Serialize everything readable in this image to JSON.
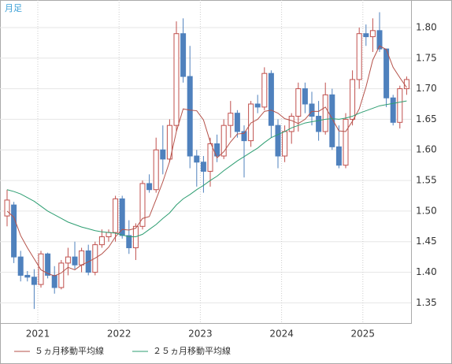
{
  "chart_data": {
    "type": "candlestick",
    "title": "月足",
    "x": [
      "2020-08",
      "2020-09",
      "2020-10",
      "2020-11",
      "2020-12",
      "2021-01",
      "2021-02",
      "2021-03",
      "2021-04",
      "2021-05",
      "2021-06",
      "2021-07",
      "2021-08",
      "2021-09",
      "2021-10",
      "2021-11",
      "2021-12",
      "2022-01",
      "2022-02",
      "2022-03",
      "2022-04",
      "2022-05",
      "2022-06",
      "2022-07",
      "2022-08",
      "2022-09",
      "2022-10",
      "2022-11",
      "2022-12",
      "2023-01",
      "2023-02",
      "2023-03",
      "2023-04",
      "2023-05",
      "2023-06",
      "2023-07",
      "2023-08",
      "2023-09",
      "2023-10",
      "2023-11",
      "2023-12",
      "2024-01",
      "2024-02",
      "2024-03",
      "2024-04",
      "2024-05",
      "2024-06",
      "2024-07",
      "2024-08",
      "2024-09",
      "2024-10",
      "2024-11",
      "2024-12",
      "2025-01",
      "2025-02",
      "2025-03",
      "2025-04",
      "2025-05",
      "2025-06",
      "2025-07"
    ],
    "open": [
      1.492,
      1.51,
      1.425,
      1.395,
      1.392,
      1.38,
      1.43,
      1.395,
      1.375,
      1.415,
      1.425,
      1.412,
      1.435,
      1.4,
      1.445,
      1.458,
      1.465,
      1.52,
      1.46,
      1.44,
      1.475,
      1.545,
      1.535,
      1.6,
      1.585,
      1.64,
      1.79,
      1.72,
      1.59,
      1.58,
      1.565,
      1.61,
      1.59,
      1.64,
      1.66,
      1.63,
      1.615,
      1.675,
      1.67,
      1.725,
      1.64,
      1.59,
      1.63,
      1.655,
      1.7,
      1.675,
      1.655,
      1.63,
      1.69,
      1.605,
      1.575,
      1.65,
      1.715,
      1.79,
      1.785,
      1.795,
      1.765,
      1.685,
      1.645,
      1.7
    ],
    "high": [
      1.535,
      1.515,
      1.435,
      1.402,
      1.405,
      1.435,
      1.432,
      1.41,
      1.42,
      1.44,
      1.45,
      1.44,
      1.445,
      1.45,
      1.47,
      1.47,
      1.525,
      1.525,
      1.485,
      1.48,
      1.55,
      1.56,
      1.62,
      1.64,
      1.65,
      1.81,
      1.815,
      1.77,
      1.6,
      1.59,
      1.62,
      1.625,
      1.65,
      1.68,
      1.665,
      1.64,
      1.68,
      1.69,
      1.735,
      1.73,
      1.65,
      1.64,
      1.66,
      1.71,
      1.71,
      1.695,
      1.68,
      1.71,
      1.7,
      1.64,
      1.66,
      1.73,
      1.8,
      1.805,
      1.815,
      1.825,
      1.765,
      1.69,
      1.705,
      1.72
    ],
    "low": [
      1.475,
      1.415,
      1.385,
      1.385,
      1.34,
      1.375,
      1.39,
      1.365,
      1.372,
      1.395,
      1.405,
      1.4,
      1.395,
      1.395,
      1.44,
      1.45,
      1.45,
      1.455,
      1.43,
      1.42,
      1.47,
      1.53,
      1.53,
      1.56,
      1.58,
      1.63,
      1.71,
      1.57,
      1.54,
      1.53,
      1.54,
      1.58,
      1.585,
      1.62,
      1.62,
      1.555,
      1.605,
      1.66,
      1.665,
      1.62,
      1.57,
      1.58,
      1.61,
      1.63,
      1.66,
      1.64,
      1.615,
      1.625,
      1.6,
      1.57,
      1.57,
      1.64,
      1.7,
      1.77,
      1.76,
      1.76,
      1.67,
      1.64,
      1.635,
      1.69
    ],
    "close": [
      1.518,
      1.425,
      1.395,
      1.392,
      1.38,
      1.43,
      1.395,
      1.375,
      1.415,
      1.425,
      1.412,
      1.435,
      1.4,
      1.445,
      1.458,
      1.465,
      1.52,
      1.46,
      1.44,
      1.475,
      1.545,
      1.535,
      1.6,
      1.585,
      1.64,
      1.79,
      1.72,
      1.59,
      1.58,
      1.565,
      1.61,
      1.59,
      1.64,
      1.66,
      1.63,
      1.615,
      1.675,
      1.67,
      1.725,
      1.64,
      1.59,
      1.63,
      1.655,
      1.7,
      1.675,
      1.655,
      1.63,
      1.69,
      1.605,
      1.575,
      1.65,
      1.715,
      1.79,
      1.785,
      1.795,
      1.765,
      1.685,
      1.645,
      1.7,
      1.715
    ],
    "up_color": "#c0504d",
    "down_color": "#4f81bd",
    "series": [
      {
        "name": "５ヵ月移動平均線",
        "color": "#b5524a",
        "values": [
          1.5,
          1.49,
          1.46,
          1.44,
          1.422,
          1.404,
          1.398,
          1.394,
          1.399,
          1.408,
          1.404,
          1.412,
          1.417,
          1.423,
          1.43,
          1.441,
          1.458,
          1.47,
          1.469,
          1.472,
          1.488,
          1.491,
          1.519,
          1.548,
          1.581,
          1.63,
          1.667,
          1.665,
          1.664,
          1.649,
          1.613,
          1.587,
          1.597,
          1.613,
          1.626,
          1.627,
          1.644,
          1.65,
          1.663,
          1.665,
          1.66,
          1.651,
          1.648,
          1.643,
          1.65,
          1.663,
          1.663,
          1.67,
          1.651,
          1.631,
          1.63,
          1.647,
          1.667,
          1.703,
          1.747,
          1.77,
          1.764,
          1.735,
          1.718,
          1.702
        ]
      },
      {
        "name": "２５ヵ月移動平均線",
        "color": "#2e9e72",
        "values": [
          1.535,
          1.532,
          1.528,
          1.522,
          1.516,
          1.508,
          1.5,
          1.494,
          1.488,
          1.482,
          1.478,
          1.474,
          1.471,
          1.468,
          1.466,
          1.465,
          1.464,
          1.461,
          1.458,
          1.458,
          1.462,
          1.47,
          1.478,
          1.488,
          1.497,
          1.51,
          1.52,
          1.527,
          1.535,
          1.542,
          1.55,
          1.557,
          1.566,
          1.574,
          1.582,
          1.589,
          1.596,
          1.603,
          1.612,
          1.62,
          1.625,
          1.63,
          1.636,
          1.64,
          1.644,
          1.646,
          1.648,
          1.65,
          1.651,
          1.65,
          1.652,
          1.655,
          1.66,
          1.664,
          1.668,
          1.672,
          1.674,
          1.676,
          1.678,
          1.68
        ]
      }
    ],
    "ylim": [
      1.317,
      1.845
    ],
    "yticks": [
      {
        "value": 1.35,
        "label": "1.35"
      },
      {
        "value": 1.4,
        "label": "1.40"
      },
      {
        "value": 1.45,
        "label": "1.45"
      },
      {
        "value": 1.5,
        "label": "1.50"
      },
      {
        "value": 1.55,
        "label": "1.55"
      },
      {
        "value": 1.6,
        "label": "1.60"
      },
      {
        "value": 1.65,
        "label": "1.65"
      },
      {
        "value": 1.7,
        "label": "1.70"
      },
      {
        "value": 1.75,
        "label": "1.75"
      },
      {
        "value": 1.8,
        "label": "1.80"
      }
    ],
    "xticks": [
      {
        "value": "2021-01",
        "label": "2021"
      },
      {
        "value": "2022-01",
        "label": "2022"
      },
      {
        "value": "2023-01",
        "label": "2023"
      },
      {
        "value": "2024-01",
        "label": "2024"
      },
      {
        "value": "2025-01",
        "label": "2025"
      }
    ],
    "grid": true
  }
}
